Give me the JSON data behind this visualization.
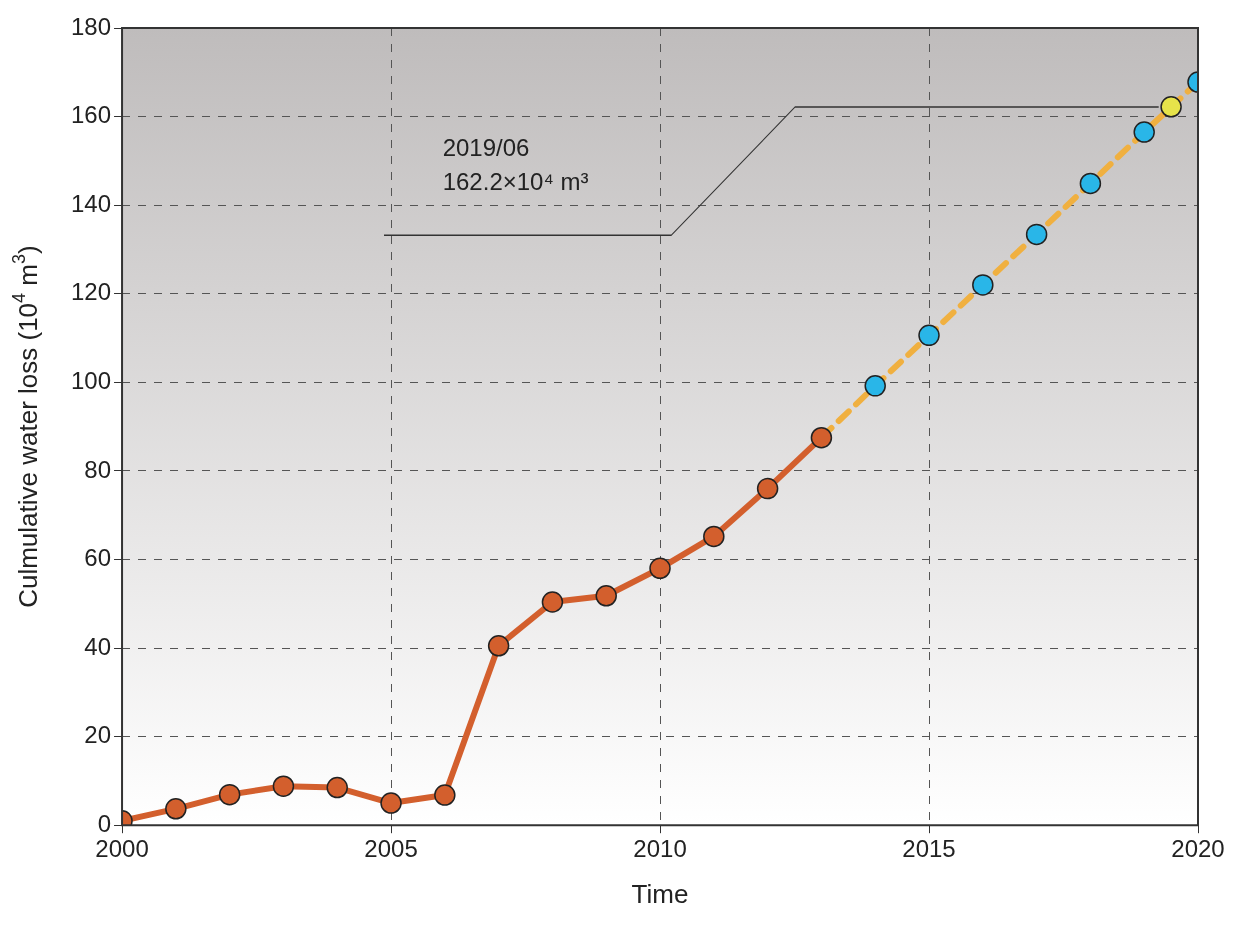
{
  "chart_data": {
    "type": "line",
    "xlabel": "Time",
    "ylabel": "Culmulative water loss (10$^{4}$ m$^{3}$)",
    "xlim": [
      2000,
      2020
    ],
    "xticks": [
      2000,
      2005,
      2010,
      2015,
      2020
    ],
    "ylim": [
      0,
      180
    ],
    "yticks": [
      0,
      20,
      40,
      60,
      80,
      100,
      120,
      140,
      160,
      180
    ],
    "grid": true,
    "series": [
      {
        "type": "line",
        "color": "#d35f2d",
        "marker": "circle",
        "line_style": "solid",
        "x": [
          2000,
          2001,
          2002,
          2003,
          2004,
          2005,
          2006,
          2007,
          2008,
          2009,
          2010,
          2011,
          2012,
          2013
        ],
        "values": [
          1,
          3.7,
          6.9,
          8.8,
          8.5,
          5,
          6.8,
          40.5,
          50.4,
          51.8,
          58,
          65.2,
          76,
          87.5
        ]
      },
      {
        "type": "line",
        "color": "#f0b040",
        "marker": "none",
        "line_style": "dashed",
        "x": [
          2013,
          2014,
          2015,
          2016,
          2017,
          2018,
          2019,
          2020
        ],
        "values": [
          87.5,
          99.2,
          110.6,
          122,
          133.4,
          144.9,
          156.5,
          167.8
        ]
      },
      {
        "type": "scatter",
        "color": "#29b6e8",
        "marker": "circle",
        "x": [
          2014,
          2015,
          2016,
          2017,
          2018,
          2019,
          2020
        ],
        "values": [
          99.2,
          110.6,
          122,
          133.4,
          144.9,
          156.5,
          167.8
        ]
      },
      {
        "type": "scatter",
        "color": "#e6e34a",
        "marker": "circle",
        "x": [
          2019.5
        ],
        "values": [
          162.2
        ]
      }
    ],
    "annotations": [
      "2019/06\n162.2×10⁴ m³"
    ]
  }
}
